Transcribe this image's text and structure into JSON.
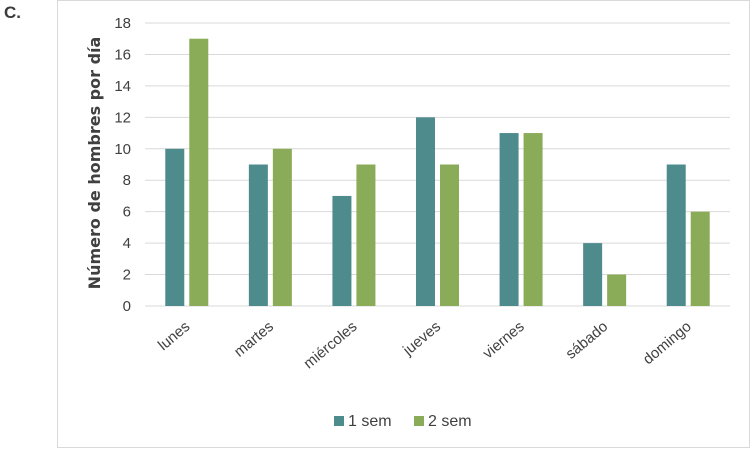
{
  "panel_label": "C.",
  "chart_data": {
    "type": "bar",
    "title": "",
    "xlabel": "",
    "ylabel": "Número de hombres por día",
    "categories": [
      "lunes",
      "martes",
      "miércoles",
      "jueves",
      "viernes",
      "sábado",
      "domingo"
    ],
    "series": [
      {
        "name": "1 sem",
        "values": [
          10,
          9,
          7,
          12,
          11,
          4,
          9
        ],
        "color": "#4e8b8c"
      },
      {
        "name": "2 sem",
        "values": [
          17,
          10,
          9,
          9,
          11,
          2,
          6
        ],
        "color": "#8aab58"
      }
    ],
    "ylim": [
      0,
      18
    ],
    "yticks": [
      0,
      2,
      4,
      6,
      8,
      10,
      12,
      14,
      16,
      18
    ],
    "grid": true,
    "legend_position": "bottom"
  }
}
